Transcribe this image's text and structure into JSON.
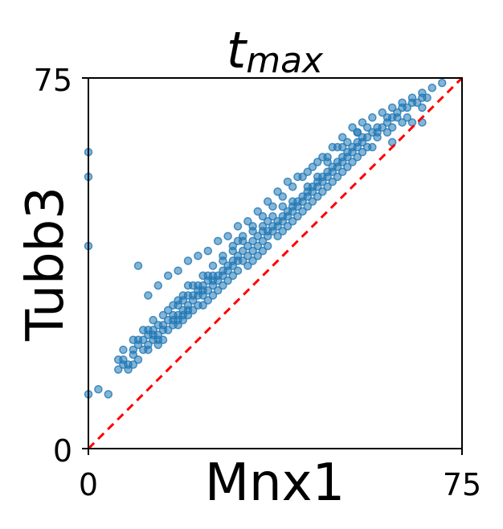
{
  "chart_data": {
    "type": "scatter",
    "title": "t",
    "title_subscript": "max",
    "xlabel": "Mnx1",
    "ylabel": "Tubb3",
    "xlim": [
      0,
      75
    ],
    "ylim": [
      0,
      75
    ],
    "x_ticks": [
      "0",
      "75"
    ],
    "y_ticks": [
      "0",
      "75"
    ],
    "grid": false,
    "point_color": "#1f77b4",
    "reference_line": {
      "style": "dashed",
      "color": "#ff0000",
      "from": [
        0,
        0
      ],
      "to": [
        75,
        75
      ]
    },
    "series": [
      {
        "points": [
          [
            0,
            11
          ],
          [
            0,
            41
          ],
          [
            0,
            55
          ],
          [
            0,
            60
          ],
          [
            2,
            12
          ],
          [
            4,
            11
          ],
          [
            7,
            18
          ],
          [
            7,
            17
          ],
          [
            6,
            18
          ],
          [
            8,
            16
          ],
          [
            7,
            20
          ],
          [
            9,
            19
          ],
          [
            9,
            20
          ],
          [
            9,
            17
          ],
          [
            10,
            21
          ],
          [
            11,
            22
          ],
          [
            12,
            21
          ],
          [
            12,
            23
          ],
          [
            13,
            23
          ],
          [
            13,
            24
          ],
          [
            14,
            22
          ],
          [
            14,
            23
          ],
          [
            15,
            24
          ],
          [
            15,
            25
          ],
          [
            16,
            26
          ],
          [
            17,
            26
          ],
          [
            17,
            27
          ],
          [
            18,
            26
          ],
          [
            18,
            27
          ],
          [
            18,
            29
          ],
          [
            19,
            27
          ],
          [
            19,
            28
          ],
          [
            19,
            30
          ],
          [
            20,
            28
          ],
          [
            20,
            29
          ],
          [
            20,
            31
          ],
          [
            21,
            30
          ],
          [
            21,
            31
          ],
          [
            22,
            31
          ],
          [
            22,
            32
          ],
          [
            23,
            31
          ],
          [
            23,
            32
          ],
          [
            23,
            33
          ],
          [
            24,
            32
          ],
          [
            24,
            34
          ],
          [
            25,
            33
          ],
          [
            25,
            34
          ],
          [
            25,
            35
          ],
          [
            26,
            34
          ],
          [
            26,
            35
          ],
          [
            27,
            35
          ],
          [
            27,
            36
          ],
          [
            28,
            36
          ],
          [
            28,
            37
          ],
          [
            29,
            37
          ],
          [
            29,
            38
          ],
          [
            30,
            38
          ],
          [
            30,
            39
          ],
          [
            31,
            38
          ],
          [
            31,
            40
          ],
          [
            32,
            39
          ],
          [
            32,
            41
          ],
          [
            33,
            40
          ],
          [
            33,
            42
          ],
          [
            34,
            41
          ],
          [
            34,
            43
          ],
          [
            35,
            42
          ],
          [
            35,
            44
          ],
          [
            36,
            43
          ],
          [
            36,
            44
          ],
          [
            37,
            44
          ],
          [
            37,
            45
          ],
          [
            38,
            45
          ],
          [
            38,
            46
          ],
          [
            39,
            46
          ],
          [
            39,
            47
          ],
          [
            40,
            47
          ],
          [
            40,
            48
          ],
          [
            41,
            48
          ],
          [
            41,
            49
          ],
          [
            42,
            49
          ],
          [
            42,
            50
          ],
          [
            43,
            50
          ],
          [
            43,
            51
          ],
          [
            44,
            51
          ],
          [
            44,
            52
          ],
          [
            45,
            52
          ],
          [
            45,
            53
          ],
          [
            46,
            53
          ],
          [
            46,
            54
          ],
          [
            47,
            54
          ],
          [
            47,
            55
          ],
          [
            48,
            55
          ],
          [
            48,
            56
          ],
          [
            49,
            56
          ],
          [
            49,
            57
          ],
          [
            50,
            57
          ],
          [
            50,
            58
          ],
          [
            51,
            58
          ],
          [
            51,
            59
          ],
          [
            52,
            59
          ],
          [
            52,
            60
          ],
          [
            53,
            60
          ],
          [
            53,
            61
          ],
          [
            54,
            61
          ],
          [
            54,
            62
          ],
          [
            55,
            62
          ],
          [
            55,
            63
          ],
          [
            56,
            63
          ],
          [
            57,
            64
          ],
          [
            58,
            64
          ],
          [
            58,
            65
          ],
          [
            59,
            65
          ],
          [
            60,
            66
          ],
          [
            61,
            67
          ],
          [
            62,
            67
          ],
          [
            62,
            68
          ],
          [
            63,
            69
          ],
          [
            64,
            69
          ],
          [
            65,
            70
          ],
          [
            66,
            70
          ],
          [
            67,
            71
          ],
          [
            67,
            66
          ],
          [
            65,
            66
          ],
          [
            61,
            62
          ],
          [
            57,
            61
          ],
          [
            54,
            59
          ],
          [
            51,
            56
          ],
          [
            48,
            53
          ],
          [
            45,
            50
          ],
          [
            42,
            47
          ],
          [
            39,
            44
          ],
          [
            36,
            41
          ],
          [
            33,
            38
          ],
          [
            30,
            36
          ],
          [
            27,
            33
          ],
          [
            24,
            30
          ],
          [
            21,
            28
          ],
          [
            18,
            25
          ],
          [
            15,
            22
          ],
          [
            12,
            20
          ],
          [
            10,
            18
          ],
          [
            8,
            17
          ],
          [
            6,
            16
          ],
          [
            30,
            42
          ],
          [
            28,
            34
          ],
          [
            25,
            31
          ],
          [
            22,
            29
          ],
          [
            19,
            26
          ],
          [
            16,
            24
          ],
          [
            13,
            22
          ],
          [
            11,
            20
          ],
          [
            40,
            45
          ],
          [
            43,
            48
          ],
          [
            46,
            51
          ],
          [
            49,
            54
          ],
          [
            52,
            57
          ],
          [
            55,
            60
          ],
          [
            58,
            63
          ],
          [
            61,
            65
          ],
          [
            64,
            67
          ],
          [
            60,
            64
          ],
          [
            56,
            61
          ],
          [
            53,
            58
          ],
          [
            50,
            55
          ],
          [
            47,
            52
          ],
          [
            44,
            49
          ],
          [
            41,
            46
          ],
          [
            38,
            43
          ],
          [
            35,
            40
          ],
          [
            32,
            37
          ],
          [
            29,
            35
          ],
          [
            26,
            32
          ],
          [
            23,
            29
          ],
          [
            20,
            27
          ],
          [
            17,
            25
          ],
          [
            14,
            21
          ],
          [
            54,
            64
          ],
          [
            56,
            65
          ],
          [
            63,
            66
          ],
          [
            67,
            69
          ],
          [
            68,
            71
          ],
          [
            37,
            47
          ],
          [
            39,
            49
          ],
          [
            35,
            45
          ],
          [
            31,
            42
          ],
          [
            34,
            39
          ],
          [
            48,
            58
          ],
          [
            51,
            61
          ],
          [
            60,
            67
          ],
          [
            46,
            55
          ],
          [
            44,
            53
          ],
          [
            41,
            50
          ],
          [
            36,
            46
          ],
          [
            33,
            44
          ],
          [
            29,
            40
          ],
          [
            27,
            38
          ],
          [
            24,
            35
          ],
          [
            22,
            33
          ],
          [
            20,
            33
          ],
          [
            18,
            30
          ],
          [
            16,
            28
          ],
          [
            14,
            25
          ],
          [
            12,
            24
          ],
          [
            10,
            22
          ],
          [
            9,
            22
          ],
          [
            11,
            24
          ],
          [
            13,
            26
          ],
          [
            15,
            27
          ],
          [
            17,
            29
          ],
          [
            19,
            31
          ],
          [
            21,
            33
          ],
          [
            23,
            35
          ],
          [
            25,
            37
          ],
          [
            27,
            39
          ],
          [
            29,
            41
          ],
          [
            31,
            43
          ],
          [
            33,
            45
          ],
          [
            35,
            47
          ],
          [
            37,
            49
          ],
          [
            39,
            51
          ],
          [
            41,
            53
          ],
          [
            43,
            55
          ],
          [
            45,
            57
          ],
          [
            47,
            59
          ],
          [
            49,
            61
          ],
          [
            51,
            63
          ],
          [
            53,
            65
          ],
          [
            55,
            66
          ],
          [
            57,
            67
          ],
          [
            59,
            68
          ],
          [
            61,
            69
          ],
          [
            63,
            70
          ],
          [
            65,
            71
          ],
          [
            67,
            72
          ],
          [
            69,
            73
          ],
          [
            71,
            74
          ],
          [
            10,
            37
          ],
          [
            12,
            31
          ],
          [
            14,
            33
          ],
          [
            16,
            35
          ],
          [
            18,
            36
          ],
          [
            20,
            38
          ],
          [
            22,
            39
          ],
          [
            24,
            40
          ],
          [
            26,
            42
          ],
          [
            28,
            43
          ],
          [
            30,
            45
          ],
          [
            32,
            46
          ],
          [
            34,
            48
          ],
          [
            36,
            50
          ],
          [
            38,
            52
          ],
          [
            40,
            54
          ],
          [
            42,
            55
          ],
          [
            44,
            56
          ],
          [
            46,
            58
          ],
          [
            48,
            59
          ],
          [
            50,
            61
          ],
          [
            52,
            62
          ],
          [
            54,
            64
          ]
        ]
      }
    ]
  }
}
